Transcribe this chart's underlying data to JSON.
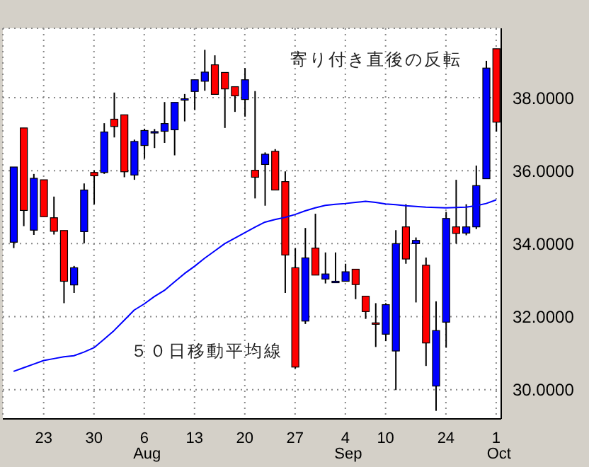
{
  "chart_data": {
    "type": "candlestick",
    "categories": [
      null,
      null,
      null,
      "23",
      null,
      null,
      null,
      null,
      "30",
      null,
      null,
      null,
      null,
      "6\nAug",
      null,
      null,
      null,
      null,
      "13",
      null,
      null,
      null,
      null,
      "20",
      null,
      null,
      null,
      null,
      "27",
      null,
      null,
      null,
      null,
      "4\nSep",
      null,
      null,
      null,
      "10",
      null,
      null,
      null,
      null,
      null,
      "24",
      null,
      null,
      null,
      null,
      "1\nOct"
    ],
    "ohlc": [
      [
        34.04,
        36.1,
        33.88,
        36.1
      ],
      [
        37.17,
        37.17,
        34.48,
        34.91
      ],
      [
        34.37,
        35.91,
        34.24,
        35.79
      ],
      [
        35.75,
        35.75,
        34.74,
        34.74
      ],
      [
        34.71,
        35.29,
        34.25,
        34.34
      ],
      [
        34.36,
        34.36,
        32.37,
        32.97
      ],
      [
        32.87,
        33.39,
        32.65,
        33.34
      ],
      [
        34.33,
        35.65,
        34.01,
        35.47
      ],
      [
        35.95,
        36.01,
        35.08,
        35.86
      ],
      [
        35.95,
        37.3,
        35.91,
        37.06
      ],
      [
        37.41,
        38.14,
        36.91,
        37.21
      ],
      [
        37.53,
        37.53,
        35.82,
        35.97
      ],
      [
        35.88,
        36.85,
        35.75,
        36.8
      ],
      [
        36.69,
        37.15,
        36.33,
        37.1
      ],
      [
        37.05,
        37.14,
        36.62,
        37.07
      ],
      [
        37.08,
        37.88,
        36.76,
        37.29
      ],
      [
        37.12,
        37.87,
        36.42,
        37.87
      ],
      [
        37.95,
        38.1,
        37.35,
        37.97
      ],
      [
        38.17,
        38.49,
        37.66,
        38.49
      ],
      [
        38.45,
        39.31,
        38.19,
        38.7
      ],
      [
        38.9,
        39.16,
        38.09,
        38.09
      ],
      [
        38.69,
        38.69,
        37.17,
        38.24
      ],
      [
        38.3,
        38.3,
        37.61,
        38.05
      ],
      [
        37.95,
        38.81,
        37.48,
        38.49
      ],
      [
        36.01,
        38.18,
        35.24,
        35.82
      ],
      [
        36.17,
        36.5,
        35.04,
        36.45
      ],
      [
        36.53,
        36.59,
        35.47,
        35.47
      ],
      [
        35.7,
        35.98,
        32.65,
        33.69
      ],
      [
        33.34,
        33.88,
        30.58,
        30.62
      ],
      [
        31.88,
        34.43,
        31.8,
        33.61
      ],
      [
        33.88,
        34.82,
        33.14,
        33.14
      ],
      [
        33.03,
        33.76,
        32.91,
        33.17
      ],
      [
        32.96,
        33.76,
        32.93,
        32.97
      ],
      [
        32.97,
        33.45,
        32.97,
        33.23
      ],
      [
        33.3,
        33.3,
        32.48,
        32.88
      ],
      [
        32.56,
        32.56,
        31.94,
        32.14
      ],
      [
        31.83,
        32.37,
        31.17,
        31.83
      ],
      [
        31.52,
        32.37,
        31.33,
        32.33
      ],
      [
        31.06,
        34.37,
        29.99,
        34.0
      ],
      [
        34.46,
        35.08,
        33.45,
        33.58
      ],
      [
        34.0,
        34.17,
        32.39,
        34.09
      ],
      [
        33.41,
        33.62,
        30.65,
        31.28
      ],
      [
        30.1,
        32.42,
        29.42,
        31.62
      ],
      [
        31.85,
        34.87,
        31.15,
        34.69
      ],
      [
        34.46,
        35.75,
        34.0,
        34.28
      ],
      [
        34.29,
        35.08,
        34.23,
        34.46
      ],
      [
        34.46,
        36.14,
        34.4,
        35.59
      ],
      [
        35.78,
        39.01,
        35.78,
        38.81
      ],
      [
        39.34,
        39.34,
        37.07,
        37.33
      ]
    ],
    "colors": [
      "#0000ff",
      "#ff0000",
      "#0000ff",
      "#ff0000",
      "#ff0000",
      "#ff0000",
      "#0000ff",
      "#0000ff",
      "#ff0000",
      "#0000ff",
      "#ff0000",
      "#ff0000",
      "#0000ff",
      "#0000ff",
      "#0000ff",
      "#0000ff",
      "#0000ff",
      "#0000ff",
      "#0000ff",
      "#0000ff",
      "#ff0000",
      "#ff0000",
      "#ff0000",
      "#0000ff",
      "#ff0000",
      "#0000ff",
      "#ff0000",
      "#ff0000",
      "#ff0000",
      "#0000ff",
      "#ff0000",
      "#0000ff",
      "#0000ff",
      "#0000ff",
      "#ff0000",
      "#ff0000",
      "#ff0000",
      "#0000ff",
      "#0000ff",
      "#ff0000",
      "#0000ff",
      "#ff0000",
      "#0000ff",
      "#0000ff",
      "#ff0000",
      "#0000ff",
      "#0000ff",
      "#0000ff",
      "#ff0000"
    ],
    "series": [
      {
        "type": "line",
        "color": "#0000ff",
        "values": [
          30.5,
          30.6,
          30.7,
          30.8,
          30.85,
          30.9,
          30.93,
          31.03,
          31.15,
          31.38,
          31.62,
          31.9,
          32.18,
          32.35,
          32.55,
          32.72,
          32.95,
          33.18,
          33.38,
          33.6,
          33.8,
          34.0,
          34.15,
          34.3,
          34.45,
          34.59,
          34.66,
          34.72,
          34.8,
          34.9,
          34.98,
          35.05,
          35.08,
          35.1,
          35.13,
          35.16,
          35.13,
          35.09,
          35.07,
          35.04,
          35.02,
          35.0,
          34.99,
          34.98,
          34.99,
          35.0,
          35.04,
          35.1,
          35.2
        ]
      }
    ],
    "ylim": [
      29.2,
      39.9
    ],
    "yticks": [
      {
        "value": 30,
        "label": "30.0000"
      },
      {
        "value": 32,
        "label": "32.0000"
      },
      {
        "value": 34,
        "label": "34.0000"
      },
      {
        "value": 36,
        "label": "36.0000"
      },
      {
        "value": 38,
        "label": "38.0000"
      }
    ],
    "grid": true,
    "annotations": [
      "寄り付き直後の反転",
      "５０日移動平均線"
    ]
  }
}
